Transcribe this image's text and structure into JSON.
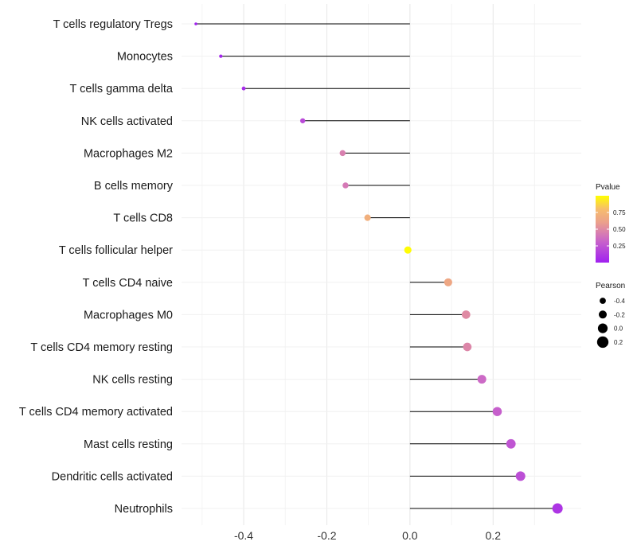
{
  "chart_data": {
    "type": "lollipop",
    "title": "",
    "xlabel": "",
    "ylabel": "",
    "xlim": [
      -0.515,
      0.37
    ],
    "x_ticks": [
      -0.4,
      -0.2,
      0.0,
      0.2
    ],
    "x_tick_labels": [
      "-0.4",
      "-0.2",
      "0.0",
      "0.2"
    ],
    "grid": true,
    "baseline": 0,
    "categories": [
      "T cells regulatory  Tregs",
      "Monocytes",
      "T cells gamma delta",
      "NK cells activated",
      "Macrophages M2",
      "B cells memory",
      "T cells CD8",
      "T cells follicular helper",
      "T cells CD4 naive",
      "Macrophages M0",
      "T cells CD4 memory resting",
      "NK cells resting",
      "T cells CD4 memory activated",
      "Mast cells resting",
      "Dendritic cells activated",
      "Neutrophils"
    ],
    "pearson": [
      -0.515,
      -0.455,
      -0.4,
      -0.258,
      -0.162,
      -0.155,
      -0.102,
      -0.005,
      0.092,
      0.135,
      0.138,
      0.173,
      0.21,
      0.243,
      0.266,
      0.355
    ],
    "pvalue": [
      0.01,
      0.03,
      0.05,
      0.2,
      0.45,
      0.42,
      0.7,
      0.99,
      0.65,
      0.5,
      0.48,
      0.35,
      0.3,
      0.25,
      0.22,
      0.1
    ],
    "legend": {
      "color": {
        "title": "Pvalue",
        "ticks": [
          0.25,
          0.5,
          0.75
        ],
        "tick_labels": [
          "0.25",
          "0.50",
          "0.75"
        ],
        "range": [
          0,
          1
        ],
        "low_color": "#a020f0",
        "high_color": "#ffff00"
      },
      "size": {
        "title": "Pearson",
        "values": [
          -0.4,
          -0.2,
          0.0,
          0.2
        ],
        "labels": [
          "-0.4",
          "-0.2",
          "0.0",
          "0.2"
        ]
      },
      "position": "right"
    }
  }
}
